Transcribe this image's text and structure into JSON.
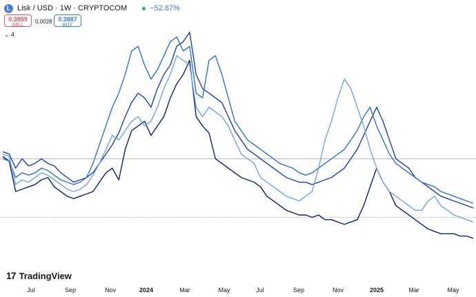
{
  "header": {
    "logo_letter": "L",
    "title": "Lisk / USD · 1W · CRYPTOCOM",
    "change": "−52.87%"
  },
  "trade": {
    "sell_price": "0.3859",
    "sell_label": "SELL",
    "spread": "0.0028",
    "buy_price": "0.3887",
    "buy_label": "BUY"
  },
  "indicators_count": "4",
  "branding": {
    "mark": "17",
    "name": "TradingView"
  },
  "chart_data": {
    "type": "line",
    "x_labels": [
      "Jul",
      "Sep",
      "Nov",
      "2024",
      "Mar",
      "May",
      "Jul",
      "Sep",
      "Nov",
      "2025",
      "Mar",
      "May"
    ],
    "bold_labels": [
      "2024",
      "2025"
    ],
    "colors": {
      "series1": "#0b1f6b",
      "series2": "#1a3fb5",
      "series3": "#2f6fd6",
      "series4": "#6fa3e8",
      "reference": "#b2b5be"
    },
    "ylim": [
      0,
      100
    ],
    "reference_levels": [
      44,
      19
    ],
    "series": [
      {
        "name": "series1",
        "values": [
          45,
          43,
          30,
          31,
          32,
          33,
          35,
          36,
          32,
          30,
          28,
          27,
          28,
          29,
          30,
          34,
          38,
          40,
          35,
          48,
          56,
          58,
          60,
          54,
          58,
          62,
          70,
          76,
          80,
          86,
          62,
          58,
          55,
          44,
          42,
          40,
          38,
          36,
          35,
          34,
          32,
          28,
          26,
          24,
          22,
          21,
          20,
          20,
          19,
          20,
          18,
          18,
          17,
          16,
          17,
          18,
          24,
          32,
          40,
          34,
          30,
          24,
          22,
          20,
          18,
          16,
          14,
          13,
          12,
          12,
          12,
          11,
          11,
          10
        ]
      },
      {
        "name": "series2",
        "values": [
          47,
          46,
          40,
          44,
          41,
          42,
          44,
          42,
          41,
          38,
          36,
          34,
          35,
          36,
          38,
          42,
          46,
          50,
          55,
          62,
          68,
          72,
          70,
          66,
          74,
          80,
          84,
          92,
          94,
          98,
          80,
          74,
          72,
          70,
          68,
          62,
          56,
          52,
          48,
          46,
          44,
          42,
          40,
          38,
          36,
          35,
          34,
          34,
          33,
          34,
          35,
          36,
          38,
          40,
          44,
          48,
          54,
          60,
          66,
          60,
          52,
          44,
          42,
          40,
          36,
          34,
          32,
          30,
          28,
          27,
          26,
          25,
          24,
          23
        ]
      },
      {
        "name": "series3",
        "values": [
          44,
          43,
          36,
          38,
          37,
          38,
          40,
          39,
          37,
          35,
          34,
          33,
          34,
          36,
          42,
          50,
          58,
          66,
          72,
          80,
          90,
          92,
          84,
          78,
          82,
          88,
          94,
          96,
          90,
          92,
          72,
          70,
          86,
          88,
          80,
          70,
          60,
          56,
          52,
          50,
          48,
          46,
          44,
          42,
          41,
          40,
          38,
          37,
          38,
          40,
          42,
          44,
          46,
          48,
          52,
          56,
          62,
          66,
          58,
          52,
          46,
          42,
          40,
          38,
          36,
          34,
          33,
          32,
          30,
          29,
          28,
          27,
          26,
          25
        ]
      },
      {
        "name": "series4",
        "values": [
          46,
          45,
          33,
          35,
          34,
          36,
          38,
          37,
          35,
          33,
          31,
          30,
          31,
          33,
          37,
          42,
          48,
          54,
          52,
          56,
          60,
          62,
          58,
          60,
          66,
          74,
          80,
          88,
          86,
          84,
          66,
          62,
          66,
          64,
          62,
          58,
          52,
          46,
          44,
          42,
          36,
          34,
          32,
          30,
          28,
          27,
          26,
          28,
          30,
          40,
          52,
          60,
          70,
          78,
          74,
          66,
          58,
          48,
          40,
          34,
          30,
          28,
          26,
          24,
          22,
          22,
          26,
          28,
          24,
          22,
          20,
          19,
          18,
          17
        ]
      }
    ]
  }
}
